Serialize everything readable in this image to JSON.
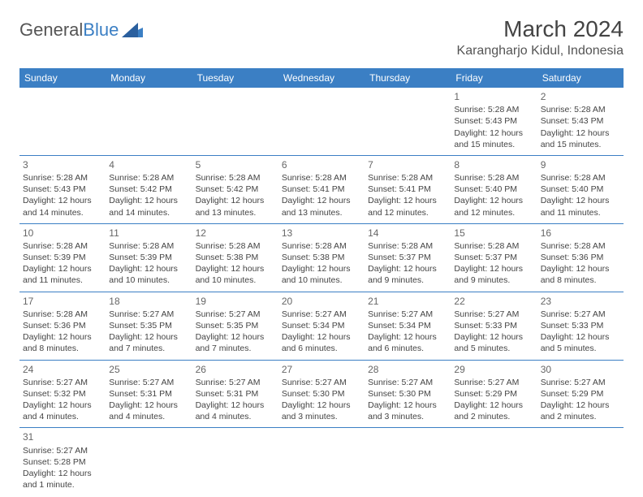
{
  "logo": {
    "text_a": "General",
    "text_b": "Blue"
  },
  "header": {
    "month_title": "March 2024",
    "location": "Karangharjo Kidul, Indonesia"
  },
  "colors": {
    "accent": "#3b7fc4",
    "text": "#444444",
    "bg": "#ffffff"
  },
  "weekdays": [
    "Sunday",
    "Monday",
    "Tuesday",
    "Wednesday",
    "Thursday",
    "Friday",
    "Saturday"
  ],
  "weeks": [
    [
      null,
      null,
      null,
      null,
      null,
      {
        "d": "1",
        "sr": "Sunrise: 5:28 AM",
        "ss": "Sunset: 5:43 PM",
        "dl1": "Daylight: 12 hours",
        "dl2": "and 15 minutes."
      },
      {
        "d": "2",
        "sr": "Sunrise: 5:28 AM",
        "ss": "Sunset: 5:43 PM",
        "dl1": "Daylight: 12 hours",
        "dl2": "and 15 minutes."
      }
    ],
    [
      {
        "d": "3",
        "sr": "Sunrise: 5:28 AM",
        "ss": "Sunset: 5:43 PM",
        "dl1": "Daylight: 12 hours",
        "dl2": "and 14 minutes."
      },
      {
        "d": "4",
        "sr": "Sunrise: 5:28 AM",
        "ss": "Sunset: 5:42 PM",
        "dl1": "Daylight: 12 hours",
        "dl2": "and 14 minutes."
      },
      {
        "d": "5",
        "sr": "Sunrise: 5:28 AM",
        "ss": "Sunset: 5:42 PM",
        "dl1": "Daylight: 12 hours",
        "dl2": "and 13 minutes."
      },
      {
        "d": "6",
        "sr": "Sunrise: 5:28 AM",
        "ss": "Sunset: 5:41 PM",
        "dl1": "Daylight: 12 hours",
        "dl2": "and 13 minutes."
      },
      {
        "d": "7",
        "sr": "Sunrise: 5:28 AM",
        "ss": "Sunset: 5:41 PM",
        "dl1": "Daylight: 12 hours",
        "dl2": "and 12 minutes."
      },
      {
        "d": "8",
        "sr": "Sunrise: 5:28 AM",
        "ss": "Sunset: 5:40 PM",
        "dl1": "Daylight: 12 hours",
        "dl2": "and 12 minutes."
      },
      {
        "d": "9",
        "sr": "Sunrise: 5:28 AM",
        "ss": "Sunset: 5:40 PM",
        "dl1": "Daylight: 12 hours",
        "dl2": "and 11 minutes."
      }
    ],
    [
      {
        "d": "10",
        "sr": "Sunrise: 5:28 AM",
        "ss": "Sunset: 5:39 PM",
        "dl1": "Daylight: 12 hours",
        "dl2": "and 11 minutes."
      },
      {
        "d": "11",
        "sr": "Sunrise: 5:28 AM",
        "ss": "Sunset: 5:39 PM",
        "dl1": "Daylight: 12 hours",
        "dl2": "and 10 minutes."
      },
      {
        "d": "12",
        "sr": "Sunrise: 5:28 AM",
        "ss": "Sunset: 5:38 PM",
        "dl1": "Daylight: 12 hours",
        "dl2": "and 10 minutes."
      },
      {
        "d": "13",
        "sr": "Sunrise: 5:28 AM",
        "ss": "Sunset: 5:38 PM",
        "dl1": "Daylight: 12 hours",
        "dl2": "and 10 minutes."
      },
      {
        "d": "14",
        "sr": "Sunrise: 5:28 AM",
        "ss": "Sunset: 5:37 PM",
        "dl1": "Daylight: 12 hours",
        "dl2": "and 9 minutes."
      },
      {
        "d": "15",
        "sr": "Sunrise: 5:28 AM",
        "ss": "Sunset: 5:37 PM",
        "dl1": "Daylight: 12 hours",
        "dl2": "and 9 minutes."
      },
      {
        "d": "16",
        "sr": "Sunrise: 5:28 AM",
        "ss": "Sunset: 5:36 PM",
        "dl1": "Daylight: 12 hours",
        "dl2": "and 8 minutes."
      }
    ],
    [
      {
        "d": "17",
        "sr": "Sunrise: 5:28 AM",
        "ss": "Sunset: 5:36 PM",
        "dl1": "Daylight: 12 hours",
        "dl2": "and 8 minutes."
      },
      {
        "d": "18",
        "sr": "Sunrise: 5:27 AM",
        "ss": "Sunset: 5:35 PM",
        "dl1": "Daylight: 12 hours",
        "dl2": "and 7 minutes."
      },
      {
        "d": "19",
        "sr": "Sunrise: 5:27 AM",
        "ss": "Sunset: 5:35 PM",
        "dl1": "Daylight: 12 hours",
        "dl2": "and 7 minutes."
      },
      {
        "d": "20",
        "sr": "Sunrise: 5:27 AM",
        "ss": "Sunset: 5:34 PM",
        "dl1": "Daylight: 12 hours",
        "dl2": "and 6 minutes."
      },
      {
        "d": "21",
        "sr": "Sunrise: 5:27 AM",
        "ss": "Sunset: 5:34 PM",
        "dl1": "Daylight: 12 hours",
        "dl2": "and 6 minutes."
      },
      {
        "d": "22",
        "sr": "Sunrise: 5:27 AM",
        "ss": "Sunset: 5:33 PM",
        "dl1": "Daylight: 12 hours",
        "dl2": "and 5 minutes."
      },
      {
        "d": "23",
        "sr": "Sunrise: 5:27 AM",
        "ss": "Sunset: 5:33 PM",
        "dl1": "Daylight: 12 hours",
        "dl2": "and 5 minutes."
      }
    ],
    [
      {
        "d": "24",
        "sr": "Sunrise: 5:27 AM",
        "ss": "Sunset: 5:32 PM",
        "dl1": "Daylight: 12 hours",
        "dl2": "and 4 minutes."
      },
      {
        "d": "25",
        "sr": "Sunrise: 5:27 AM",
        "ss": "Sunset: 5:31 PM",
        "dl1": "Daylight: 12 hours",
        "dl2": "and 4 minutes."
      },
      {
        "d": "26",
        "sr": "Sunrise: 5:27 AM",
        "ss": "Sunset: 5:31 PM",
        "dl1": "Daylight: 12 hours",
        "dl2": "and 4 minutes."
      },
      {
        "d": "27",
        "sr": "Sunrise: 5:27 AM",
        "ss": "Sunset: 5:30 PM",
        "dl1": "Daylight: 12 hours",
        "dl2": "and 3 minutes."
      },
      {
        "d": "28",
        "sr": "Sunrise: 5:27 AM",
        "ss": "Sunset: 5:30 PM",
        "dl1": "Daylight: 12 hours",
        "dl2": "and 3 minutes."
      },
      {
        "d": "29",
        "sr": "Sunrise: 5:27 AM",
        "ss": "Sunset: 5:29 PM",
        "dl1": "Daylight: 12 hours",
        "dl2": "and 2 minutes."
      },
      {
        "d": "30",
        "sr": "Sunrise: 5:27 AM",
        "ss": "Sunset: 5:29 PM",
        "dl1": "Daylight: 12 hours",
        "dl2": "and 2 minutes."
      }
    ],
    [
      {
        "d": "31",
        "sr": "Sunrise: 5:27 AM",
        "ss": "Sunset: 5:28 PM",
        "dl1": "Daylight: 12 hours",
        "dl2": "and 1 minute."
      },
      null,
      null,
      null,
      null,
      null,
      null
    ]
  ]
}
